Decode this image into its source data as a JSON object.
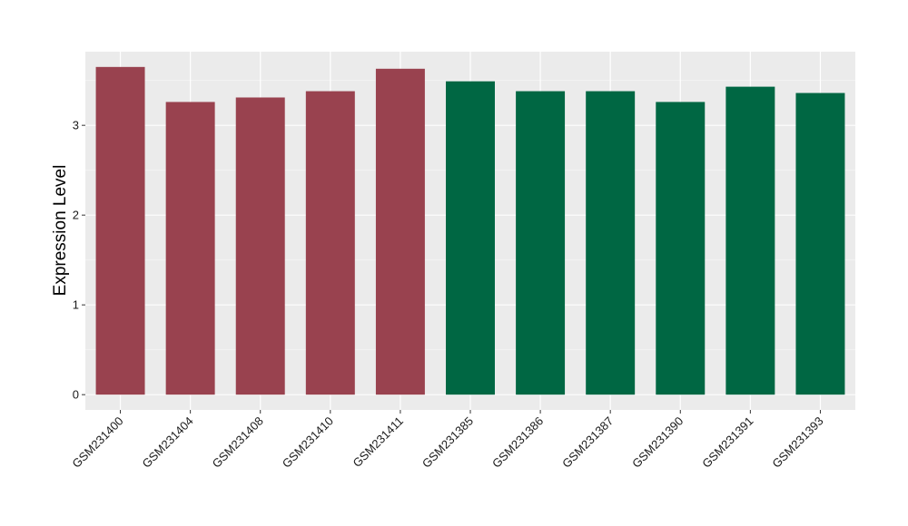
{
  "chart_data": {
    "type": "bar",
    "title": "",
    "xlabel": "",
    "ylabel": "Expression Level",
    "ylim": [
      -0.17,
      3.82
    ],
    "yticks": [
      0,
      1,
      2,
      3
    ],
    "grid": true,
    "legend": "none",
    "colors": {
      "panel": "#EBEBEB",
      "grid_major": "#FFFFFF",
      "grid_minor": "#F5F5F5",
      "group_a": "#99424F",
      "group_b": "#006743"
    },
    "categories": [
      "GSM231400",
      "GSM231404",
      "GSM231408",
      "GSM231410",
      "GSM231411",
      "GSM231385",
      "GSM231386",
      "GSM231387",
      "GSM231390",
      "GSM231391",
      "GSM231393"
    ],
    "values": [
      3.65,
      3.26,
      3.31,
      3.38,
      3.63,
      3.49,
      3.38,
      3.38,
      3.26,
      3.43,
      3.36
    ],
    "bar_colors": [
      "#99424F",
      "#99424F",
      "#99424F",
      "#99424F",
      "#99424F",
      "#006743",
      "#006743",
      "#006743",
      "#006743",
      "#006743",
      "#006743"
    ]
  }
}
